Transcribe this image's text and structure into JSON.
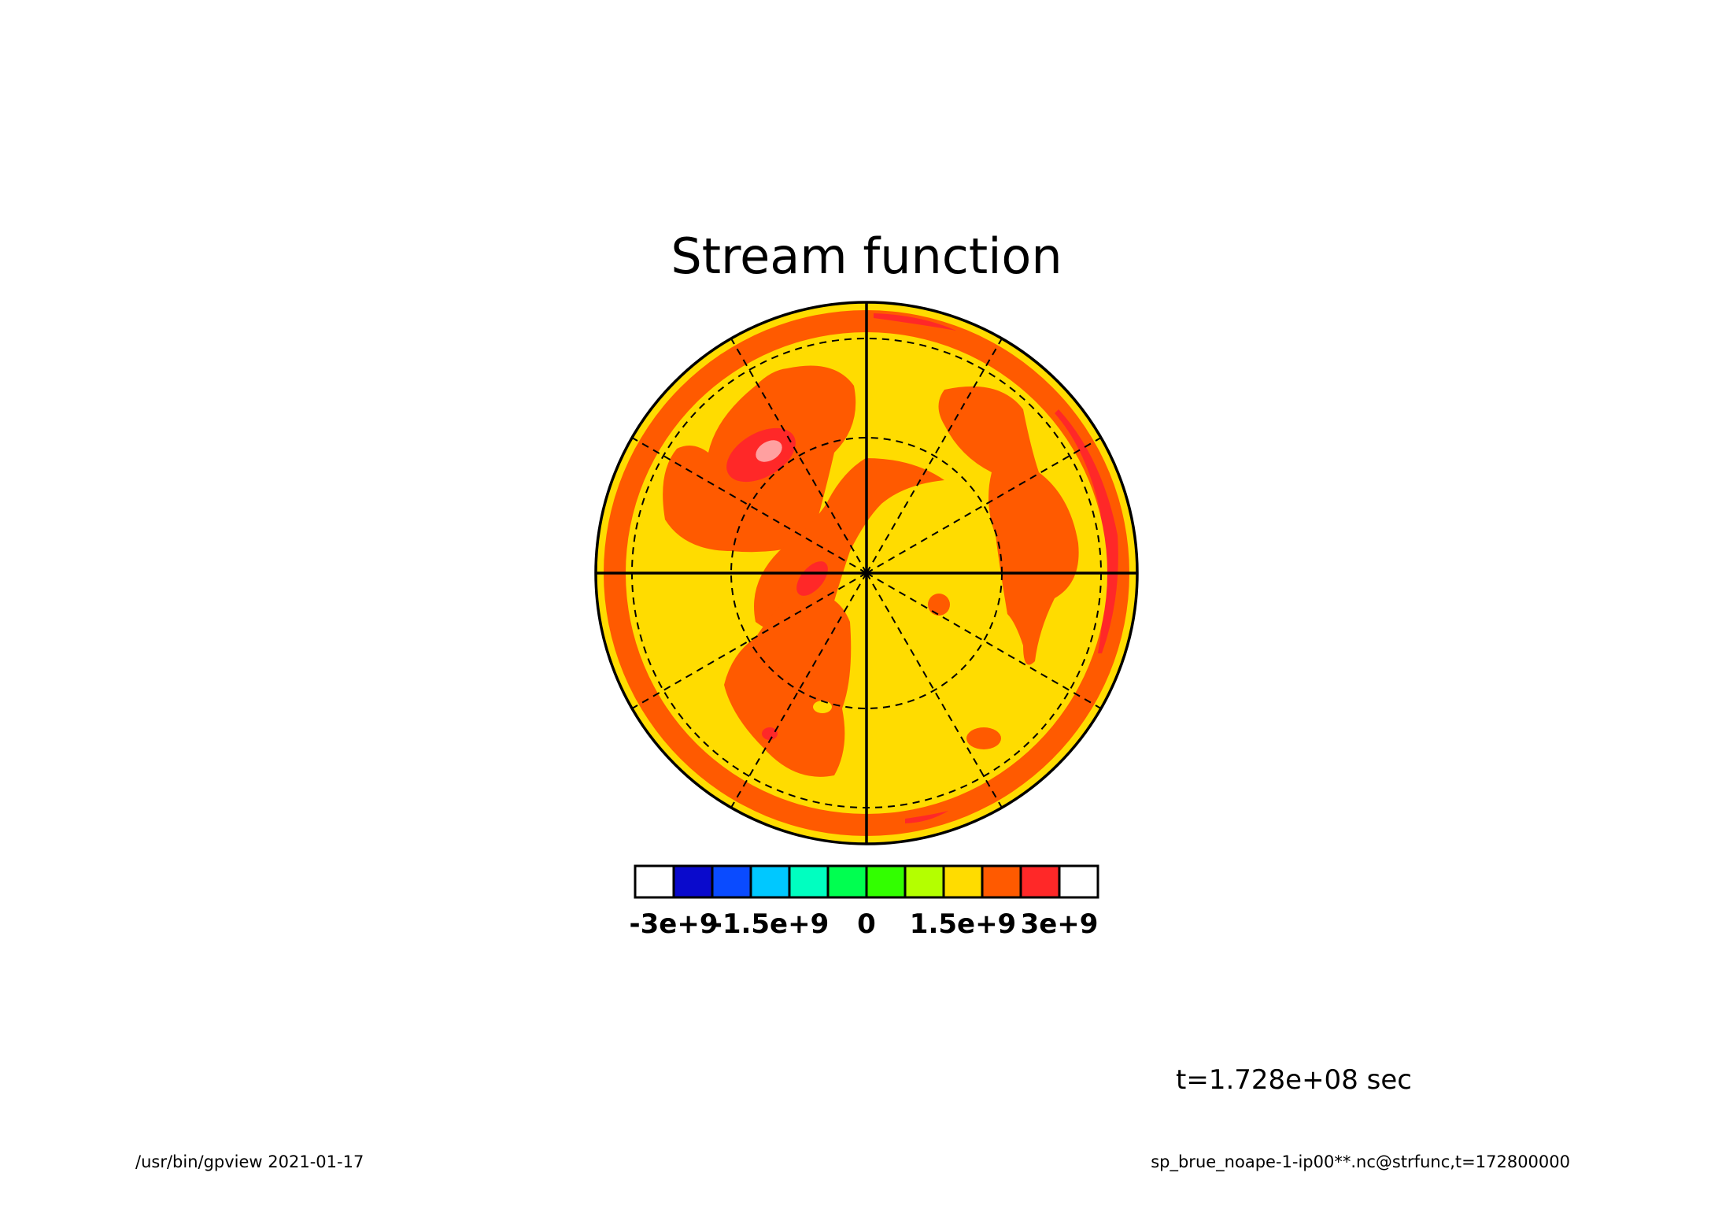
{
  "chart_data": {
    "type": "heatmap",
    "projection": "polar stereographic",
    "title": "Stream function",
    "colorbar": {
      "tick_labels": [
        "-3e+9",
        "-1.5e+9",
        "0",
        "1.5e+9",
        "3e+9"
      ],
      "tick_values": [
        -3000000000,
        -1500000000,
        0,
        1500000000,
        3000000000
      ],
      "levels": [
        -3000000000,
        -2500000000,
        -2000000000,
        -1500000000,
        -1000000000,
        -500000000,
        0,
        500000000,
        1000000000,
        1500000000,
        2000000000,
        2500000000,
        3000000000
      ],
      "bin_colors": [
        "#ffffff",
        "#0a0acc",
        "#0a4bff",
        "#00c8ff",
        "#00ffc0",
        "#00ff50",
        "#32ff00",
        "#b4ff00",
        "#ffdc00",
        "#ff5a00",
        "#ff2828",
        "#ffffff"
      ]
    },
    "grid": true,
    "time_label": "t=1.728e+08 sec"
  },
  "footer": {
    "left": "/usr/bin/gpview  2021-01-17",
    "right": "sp_brue_noape-1-ip00**.nc@strfunc,t=172800000"
  }
}
